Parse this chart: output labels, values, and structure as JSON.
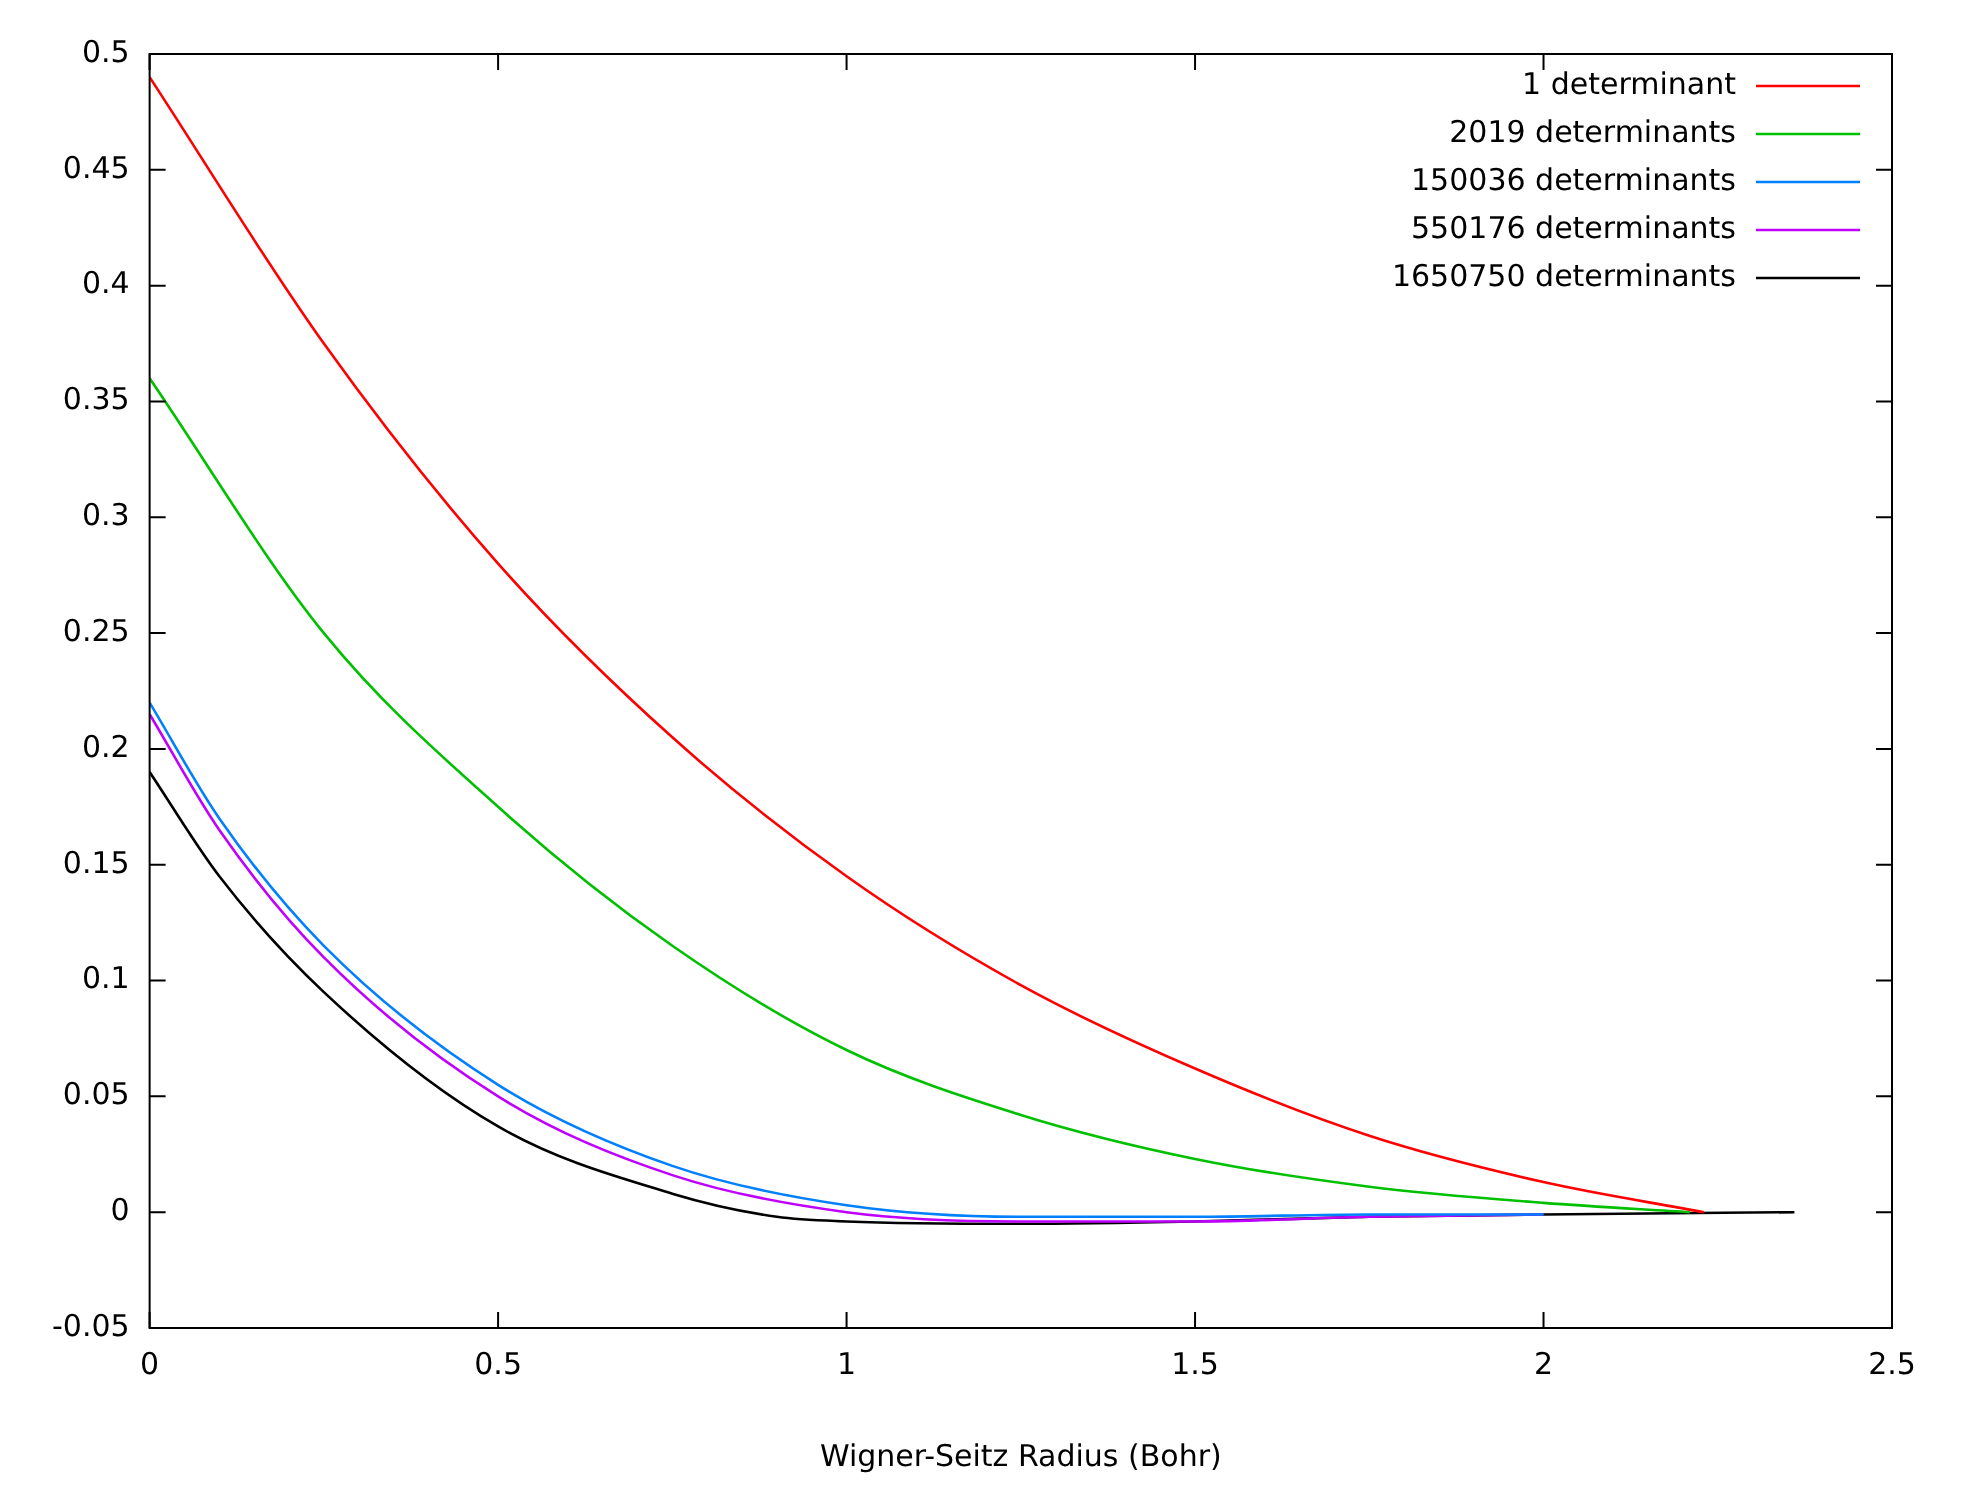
{
  "chart_data": {
    "type": "line",
    "xlabel": "Wigner-Seitz Radius (Bohr)",
    "xlim": [
      0,
      2.5
    ],
    "xticks": [
      0,
      0.5,
      1,
      1.5,
      2,
      2.5
    ],
    "ylim": [
      -0.05,
      0.5
    ],
    "yticks": [
      -0.05,
      0,
      0.05,
      0.1,
      0.15,
      0.2,
      0.25,
      0.3,
      0.35,
      0.4,
      0.45,
      0.5
    ],
    "legend": "top right",
    "marker": "none",
    "line_style": "solid",
    "series": [
      {
        "name": "1 determinant",
        "color": "#ff0000",
        "x": [
          0,
          0.25,
          0.5,
          0.75,
          1,
          1.25,
          1.5,
          1.75,
          2,
          2.23
        ],
        "values": [
          0.49,
          0.375,
          0.28,
          0.205,
          0.145,
          0.098,
          0.062,
          0.033,
          0.013,
          0
        ]
      },
      {
        "name": "2019 determinants",
        "color": "#00c000",
        "x": [
          0,
          0.25,
          0.5,
          0.75,
          1,
          1.25,
          1.5,
          1.75,
          2,
          2.21
        ],
        "values": [
          0.36,
          0.25,
          0.175,
          0.115,
          0.07,
          0.042,
          0.023,
          0.011,
          0.004,
          0
        ]
      },
      {
        "name": "150036 determinants",
        "color": "#0080ff",
        "x": [
          0,
          0.1,
          0.25,
          0.5,
          0.75,
          1,
          1.25,
          1.5,
          1.75,
          2
        ],
        "values": [
          0.22,
          0.17,
          0.115,
          0.055,
          0.02,
          0.003,
          -0.002,
          -0.002,
          -0.001,
          -0.001
        ]
      },
      {
        "name": "550176 determinants",
        "color": "#c000ff",
        "x": [
          0,
          0.1,
          0.25,
          0.5,
          0.75,
          1,
          1.25,
          1.5,
          1.75,
          2
        ],
        "values": [
          0.215,
          0.165,
          0.11,
          0.05,
          0.016,
          0,
          -0.004,
          -0.004,
          -0.002,
          -0.001
        ]
      },
      {
        "name": "1650750 determinants",
        "color": "#000000",
        "x": [
          0,
          0.1,
          0.25,
          0.5,
          0.75,
          0.9,
          1,
          1.25,
          1.5,
          1.75,
          2,
          2.36
        ],
        "values": [
          0.19,
          0.145,
          0.095,
          0.037,
          0.008,
          -0.002,
          -0.004,
          -0.005,
          -0.004,
          -0.002,
          -0.001,
          0
        ]
      }
    ]
  }
}
